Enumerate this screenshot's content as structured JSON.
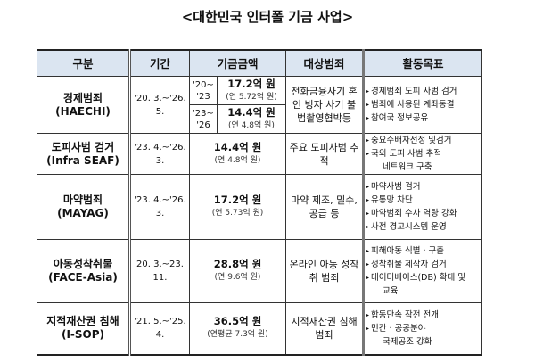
{
  "title": "<대한민국 인터폴 기금 사업>",
  "headers": [
    "구분",
    "기간",
    "기금금액",
    "대상범죄",
    "활동목표"
  ],
  "rows": [
    {
      "name": "경제범죄",
      "code": "(HAECHI)",
      "period": "'20. 3.~'26. 5.",
      "funds": [
        {
          "span_a": "'20~",
          "span_b": "'23",
          "amount": "17.2억 원",
          "annual": "(연 5.72억 원)"
        },
        {
          "span_a": "'23~",
          "span_b": "'26",
          "amount": "14.4억 원",
          "annual": "(연 4.8억 원)"
        }
      ],
      "target": "전화금융사기 혼인 빙자 사기 불법촬영협박등",
      "goals": [
        "경제범죄 도피 사범 검거",
        "범죄에 사용된 계좌동결",
        "참여국 정보공유"
      ]
    },
    {
      "name": "도피사범 검거",
      "code": "(Infra SEAF)",
      "period": "'23. 4.~'26. 3.",
      "amount": "14.4억 원",
      "annual": "(연 4.8억 원)",
      "target": "주요 도피사범 추적",
      "goals": [
        "중요수배자선정 및검거",
        "국외 도피 사범 추적"
      ],
      "goal_cont": "네트워크 구축"
    },
    {
      "name": "마약범죄",
      "code": "(MAYAG)",
      "period": "'23. 4.~'26. 3.",
      "amount": "17.2억 원",
      "annual": "(연 5.73억 원)",
      "target": "마약 제조, 밀수, 공급 등",
      "goals": [
        "마약사범 검거",
        "유통망 차단",
        "마약범죄 수사 역량 강화",
        "사전 경고시스템 운영"
      ]
    },
    {
      "name": "아동성착취물",
      "code": "(FACE-Asia)",
      "period": "20. 3.~23. 11.",
      "amount": "28.8억 원",
      "annual": "(연 9.6억 원)",
      "target": "온라인 아동 성착취 범죄",
      "goals": [
        "피해아동 식별 · 구출",
        "성착취물 제작자 검거",
        "데이터베이스(DB) 확대 및"
      ],
      "goal_cont": "교육"
    },
    {
      "name": "지적재산권 침해",
      "code": "(I-SOP)",
      "period": "'21. 5.~'25. 4.",
      "amount": "36.5억 원",
      "annual": "(연평균 7.3억 원)",
      "target": "지적재산권 침해 범죄",
      "goals": [
        "합동단속 작전 전개",
        "민간 · 공공분야"
      ],
      "goal_cont": "국제공조 강화"
    }
  ]
}
